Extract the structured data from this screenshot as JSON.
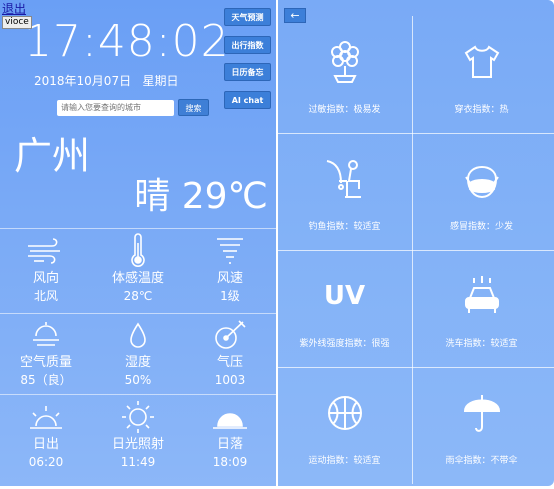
{
  "top": {
    "logout": "退出",
    "voice": "vioce"
  },
  "clock": {
    "time": "17:48:02",
    "date": "2018年10月07日",
    "weekday": "星期日"
  },
  "search": {
    "placeholder": "请输入您要查询的城市",
    "button": "搜索"
  },
  "side_buttons": [
    "天气预测",
    "出行指数",
    "日历备忘",
    "AI chat"
  ],
  "current": {
    "city": "广州",
    "weather": "晴",
    "temp": "29℃"
  },
  "stats": [
    {
      "icon": "wind-icon",
      "label": "风向",
      "value": "北风"
    },
    {
      "icon": "thermometer-icon",
      "label": "体感温度",
      "value": "28℃"
    },
    {
      "icon": "tornado-icon",
      "label": "风速",
      "value": "1级"
    },
    {
      "icon": "air-quality-icon",
      "label": "空气质量",
      "value": "85（良）"
    },
    {
      "icon": "humidity-icon",
      "label": "湿度",
      "value": "50%"
    },
    {
      "icon": "pressure-icon",
      "label": "气压",
      "value": "1003"
    },
    {
      "icon": "sunrise-icon",
      "label": "日出",
      "value": "06:20"
    },
    {
      "icon": "sunshine-icon",
      "label": "日光照射",
      "value": "11:49"
    },
    {
      "icon": "sunset-icon",
      "label": "日落",
      "value": "18:09"
    }
  ],
  "back_label": "←",
  "indices": [
    {
      "icon": "flower-icon",
      "text": "过敏指数：极易发"
    },
    {
      "icon": "shirt-icon",
      "text": "穿衣指数：热"
    },
    {
      "icon": "fishing-icon",
      "text": "钓鱼指数：较适宜"
    },
    {
      "icon": "mask-icon",
      "text": "感冒指数：少发"
    },
    {
      "icon": "uv-icon",
      "text": "紫外线强度指数：很强"
    },
    {
      "icon": "car-wash-icon",
      "text": "洗车指数：较适宜"
    },
    {
      "icon": "sport-ball-icon",
      "text": "运动指数：较适宜"
    },
    {
      "icon": "umbrella-icon",
      "text": "雨伞指数：不带伞"
    }
  ],
  "uv_text": "UV",
  "colors": {
    "panel": "#6a9ff5",
    "button": "#3c7fd9"
  }
}
